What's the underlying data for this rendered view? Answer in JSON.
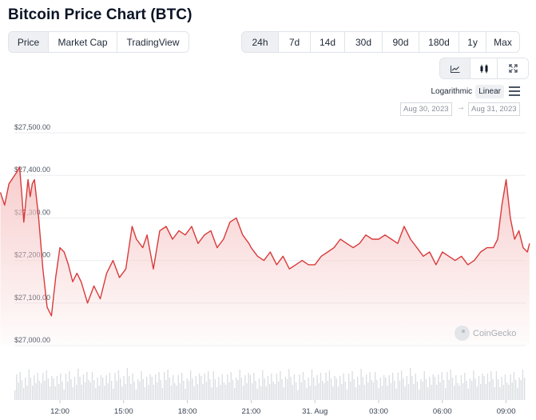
{
  "page": {
    "title": "Bitcoin Price Chart (BTC)"
  },
  "type_tabs": [
    {
      "label": "Price",
      "active": true
    },
    {
      "label": "Market Cap",
      "active": false
    },
    {
      "label": "TradingView",
      "active": false
    }
  ],
  "range_tabs": [
    {
      "label": "24h",
      "active": true
    },
    {
      "label": "7d",
      "active": false
    },
    {
      "label": "14d",
      "active": false
    },
    {
      "label": "30d",
      "active": false
    },
    {
      "label": "90d",
      "active": false
    },
    {
      "label": "180d",
      "active": false
    },
    {
      "label": "1y",
      "active": false
    },
    {
      "label": "Max",
      "active": false
    }
  ],
  "view_tabs": [
    {
      "icon": "line-chart-icon",
      "active": true
    },
    {
      "icon": "candlestick-icon",
      "active": false
    },
    {
      "icon": "fullscreen-icon",
      "active": false
    }
  ],
  "scale": {
    "logarithmic": "Logarithmic",
    "linear": "Linear",
    "active": "linear"
  },
  "date_range": {
    "from": "Aug 30, 2023",
    "to": "Aug 31, 2023",
    "separator": "→"
  },
  "watermark": "CoinGecko",
  "colors": {
    "line": "#d93a3a",
    "fill_top": "#f6c4c4",
    "grid": "#eceef1",
    "volume": "#d9dce1",
    "active_tab": "#eef0f3"
  },
  "chart_data": {
    "type": "area",
    "title": "",
    "xlabel": "",
    "ylabel": "",
    "grid": true,
    "ylim": [
      27000,
      27500
    ],
    "y_ticks": [
      "$27,500.00",
      "$27,400.00",
      "$27,300.00",
      "$27,200.00",
      "$27,100.00",
      "$27,000.00"
    ],
    "y_tick_values": [
      27500,
      27400,
      27300,
      27200,
      27100,
      27000
    ],
    "x_ticks": [
      "12:00",
      "15:00",
      "18:00",
      "21:00",
      "31. Aug",
      "03:00",
      "06:00",
      "09:00"
    ],
    "x_hours": [
      -1,
      2,
      5,
      8,
      11,
      14,
      17,
      20
    ],
    "series": [
      {
        "x": [
          -3.8,
          -3.6,
          -3.4,
          -3.2,
          -3.0,
          -2.9,
          -2.8,
          -2.7,
          -2.6,
          -2.5,
          -2.4,
          -2.3,
          -2.2,
          -2.0,
          -1.8,
          -1.6,
          -1.4,
          -1.2,
          -1.0,
          -0.8,
          -0.6,
          -0.4,
          -0.2,
          0.0,
          0.3,
          0.6,
          0.9,
          1.2,
          1.5,
          1.8,
          2.1,
          2.4,
          2.6,
          2.9,
          3.1,
          3.4,
          3.7,
          4.0,
          4.3,
          4.6,
          4.9,
          5.2,
          5.5,
          5.8,
          6.1,
          6.4,
          6.7,
          7.0,
          7.3,
          7.6,
          7.9,
          8.0,
          8.3,
          8.6,
          8.9,
          9.2,
          9.5,
          9.8,
          10.1,
          10.4,
          10.7,
          11.0,
          11.3,
          11.6,
          11.9,
          12.2,
          12.5,
          12.8,
          13.1,
          13.4,
          13.7,
          14.0,
          14.3,
          14.6,
          14.9,
          15.2,
          15.5,
          15.8,
          16.1,
          16.4,
          16.7,
          17.0,
          17.3,
          17.6,
          17.9,
          18.2,
          18.5,
          18.8,
          19.1,
          19.4,
          19.6,
          19.8,
          20.0,
          20.2,
          20.4,
          20.6,
          20.8,
          21.0,
          21.1
        ],
        "y": [
          27360,
          27330,
          27380,
          27395,
          27410,
          27420,
          27360,
          27290,
          27340,
          27390,
          27350,
          27380,
          27390,
          27300,
          27180,
          27090,
          27070,
          27160,
          27230,
          27220,
          27190,
          27150,
          27170,
          27150,
          27100,
          27140,
          27110,
          27170,
          27200,
          27160,
          27180,
          27280,
          27250,
          27230,
          27260,
          27180,
          27270,
          27280,
          27250,
          27270,
          27260,
          27280,
          27240,
          27260,
          27270,
          27230,
          27250,
          27290,
          27300,
          27260,
          27240,
          27230,
          27210,
          27200,
          27220,
          27190,
          27210,
          27180,
          27190,
          27200,
          27190,
          27190,
          27210,
          27220,
          27230,
          27250,
          27240,
          27230,
          27240,
          27260,
          27250,
          27250,
          27260,
          27250,
          27240,
          27280,
          27250,
          27230,
          27210,
          27220,
          27190,
          27220,
          27210,
          27200,
          27210,
          27190,
          27200,
          27220,
          27230,
          27230,
          27250,
          27330,
          27390,
          27300,
          27250,
          27270,
          27230,
          27220,
          27240
        ]
      }
    ]
  }
}
